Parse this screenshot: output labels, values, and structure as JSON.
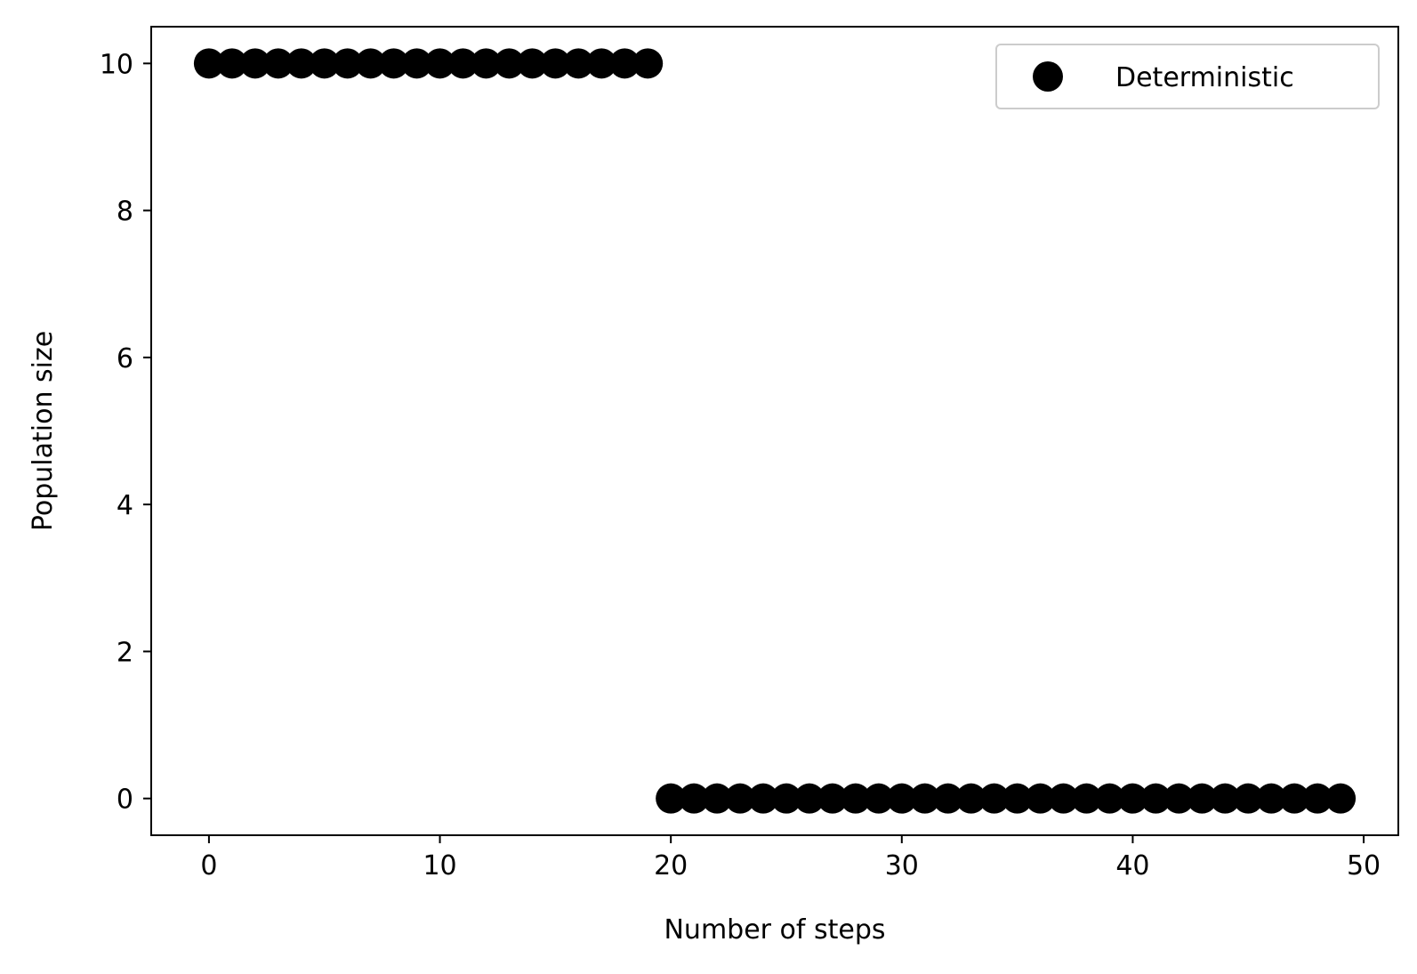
{
  "chart_data": {
    "type": "scatter",
    "title": "",
    "xlabel": "Number of steps",
    "ylabel": "Population size",
    "xlim": [
      -2.5,
      51.5
    ],
    "ylim": [
      -0.5,
      10.5
    ],
    "x_ticks": [
      0,
      10,
      20,
      30,
      40,
      50
    ],
    "y_ticks": [
      0,
      2,
      4,
      6,
      8,
      10
    ],
    "grid": false,
    "legend_position": "top-right",
    "series": [
      {
        "name": "Deterministic",
        "color": "#000000",
        "marker": "circle",
        "points": [
          {
            "x": 0,
            "y": 10
          },
          {
            "x": 1,
            "y": 10
          },
          {
            "x": 2,
            "y": 10
          },
          {
            "x": 3,
            "y": 10
          },
          {
            "x": 4,
            "y": 10
          },
          {
            "x": 5,
            "y": 10
          },
          {
            "x": 6,
            "y": 10
          },
          {
            "x": 7,
            "y": 10
          },
          {
            "x": 8,
            "y": 10
          },
          {
            "x": 9,
            "y": 10
          },
          {
            "x": 10,
            "y": 10
          },
          {
            "x": 11,
            "y": 10
          },
          {
            "x": 12,
            "y": 10
          },
          {
            "x": 13,
            "y": 10
          },
          {
            "x": 14,
            "y": 10
          },
          {
            "x": 15,
            "y": 10
          },
          {
            "x": 16,
            "y": 10
          },
          {
            "x": 17,
            "y": 10
          },
          {
            "x": 18,
            "y": 10
          },
          {
            "x": 19,
            "y": 10
          },
          {
            "x": 20,
            "y": 0
          },
          {
            "x": 21,
            "y": 0
          },
          {
            "x": 22,
            "y": 0
          },
          {
            "x": 23,
            "y": 0
          },
          {
            "x": 24,
            "y": 0
          },
          {
            "x": 25,
            "y": 0
          },
          {
            "x": 26,
            "y": 0
          },
          {
            "x": 27,
            "y": 0
          },
          {
            "x": 28,
            "y": 0
          },
          {
            "x": 29,
            "y": 0
          },
          {
            "x": 30,
            "y": 0
          },
          {
            "x": 31,
            "y": 0
          },
          {
            "x": 32,
            "y": 0
          },
          {
            "x": 33,
            "y": 0
          },
          {
            "x": 34,
            "y": 0
          },
          {
            "x": 35,
            "y": 0
          },
          {
            "x": 36,
            "y": 0
          },
          {
            "x": 37,
            "y": 0
          },
          {
            "x": 38,
            "y": 0
          },
          {
            "x": 39,
            "y": 0
          },
          {
            "x": 40,
            "y": 0
          },
          {
            "x": 41,
            "y": 0
          },
          {
            "x": 42,
            "y": 0
          },
          {
            "x": 43,
            "y": 0
          },
          {
            "x": 44,
            "y": 0
          },
          {
            "x": 45,
            "y": 0
          },
          {
            "x": 46,
            "y": 0
          },
          {
            "x": 47,
            "y": 0
          },
          {
            "x": 48,
            "y": 0
          },
          {
            "x": 49,
            "y": 0
          }
        ]
      }
    ]
  }
}
